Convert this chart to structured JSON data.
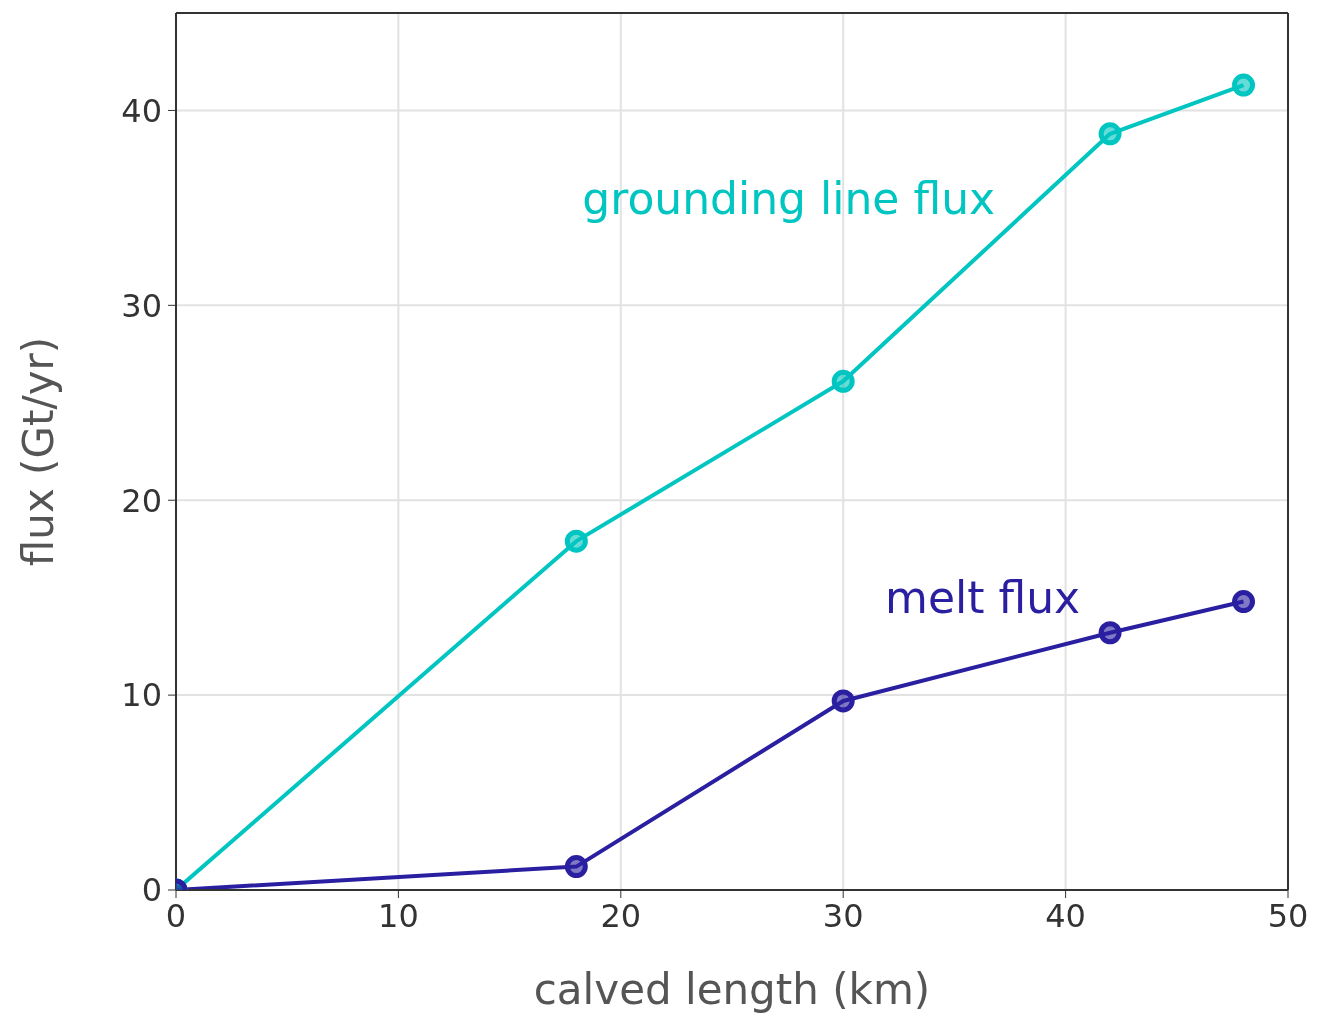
{
  "chart_data": {
    "type": "line",
    "xlabel": "calved length (km)",
    "ylabel": "flux (Gt/yr)",
    "x": [
      0,
      18,
      30,
      42,
      48
    ],
    "series": [
      {
        "name": "grounding line flux",
        "color": "#00c5c0",
        "values": [
          0,
          17.9,
          26.1,
          38.8,
          41.3
        ]
      },
      {
        "name": "melt flux",
        "color": "#2a1fa0",
        "values": [
          0,
          1.2,
          9.7,
          13.2,
          14.8
        ]
      }
    ],
    "xlim": [
      0,
      50
    ],
    "xticks": [
      0,
      10,
      20,
      30,
      40,
      50
    ],
    "ylim": [
      0,
      45
    ],
    "yticks": [
      0,
      10,
      20,
      30,
      40
    ],
    "grid": true,
    "marker": "circle",
    "line_style": "solid"
  }
}
